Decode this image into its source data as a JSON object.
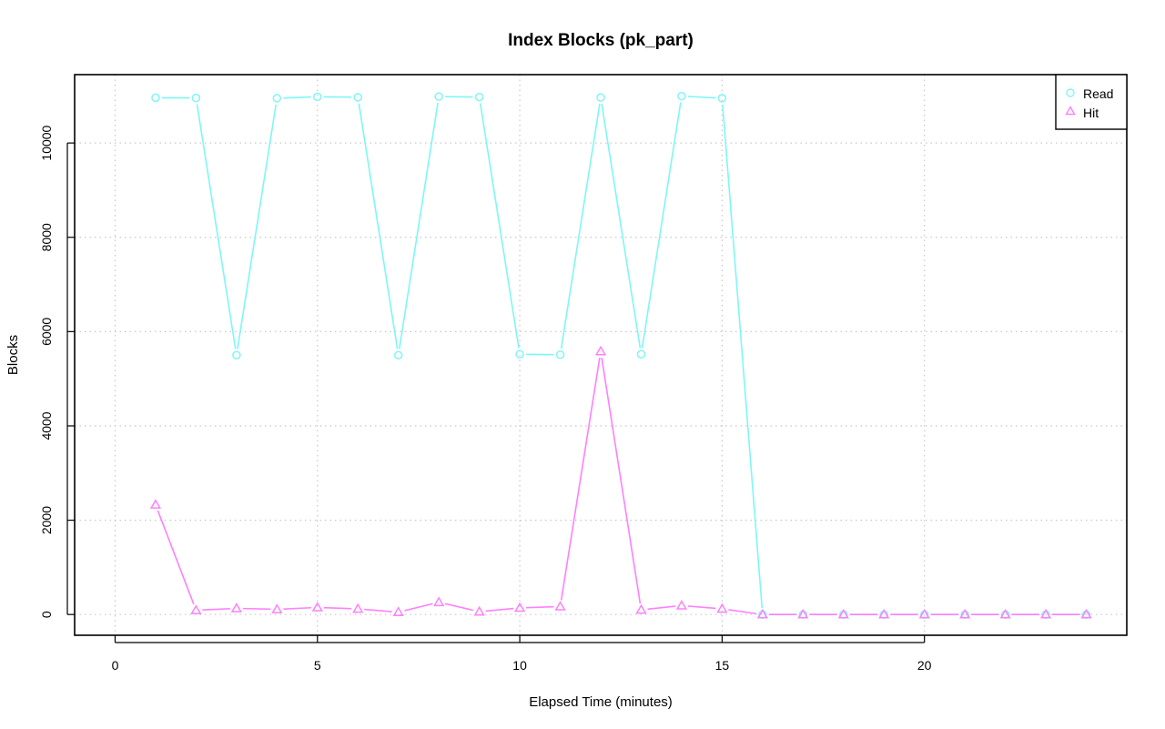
{
  "chart_data": {
    "type": "line",
    "title": "Index Blocks (pk_part)",
    "xlabel": "Elapsed Time (minutes)",
    "ylabel": "Blocks",
    "xlim": [
      -1,
      25
    ],
    "ylim": [
      -440,
      11450
    ],
    "x_ticks": [
      0,
      5,
      10,
      15,
      20
    ],
    "y_ticks": [
      0,
      2000,
      4000,
      6000,
      8000,
      10000
    ],
    "grid": true,
    "legend_position": "top-right",
    "series": [
      {
        "name": "Read",
        "marker": "circle",
        "color": "#7ff6f6",
        "x": [
          1,
          2,
          3,
          4,
          5,
          6,
          7,
          8,
          9,
          10,
          11,
          12,
          13,
          14,
          15,
          16,
          17,
          18,
          19,
          20,
          21,
          22,
          23,
          24
        ],
        "y": [
          10960,
          10955,
          5500,
          10950,
          10980,
          10970,
          5500,
          10985,
          10975,
          5520,
          5510,
          10965,
          5520,
          10995,
          10950,
          0,
          0,
          0,
          0,
          0,
          0,
          0,
          0,
          0
        ]
      },
      {
        "name": "Hit",
        "marker": "triangle",
        "color": "#ff80ff",
        "x": [
          1,
          2,
          3,
          4,
          5,
          6,
          7,
          8,
          9,
          10,
          11,
          12,
          13,
          14,
          15,
          16,
          17,
          18,
          19,
          20,
          21,
          22,
          23,
          24
        ],
        "y": [
          2330,
          90,
          130,
          110,
          150,
          120,
          50,
          260,
          60,
          140,
          170,
          5580,
          100,
          190,
          120,
          0,
          0,
          0,
          0,
          0,
          0,
          0,
          0,
          0
        ]
      }
    ]
  }
}
